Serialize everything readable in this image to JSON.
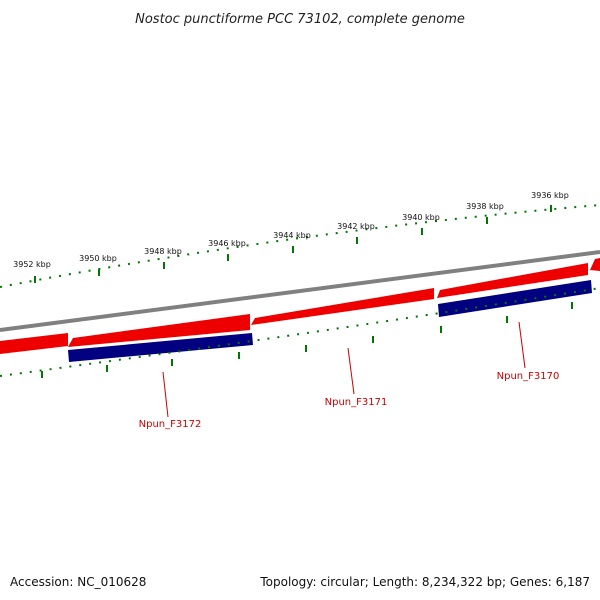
{
  "title": "Nostoc punctiforme PCC 73102, complete genome",
  "footer": {
    "accession": "Accession: NC_010628",
    "summary": "Topology: circular; Length: 8,234,322 bp; Genes: 6,187"
  },
  "ticks": {
    "labels": [
      "3952 kbp",
      "3950 kbp",
      "3948 kbp",
      "3946 kbp",
      "3944 kbp",
      "3942 kbp",
      "3940 kbp",
      "3938 kbp",
      "3936 kbp"
    ]
  },
  "genes": [
    {
      "name": "Npun_F3172"
    },
    {
      "name": "Npun_F3171"
    },
    {
      "name": "Npun_F3170"
    }
  ],
  "colors": {
    "backbone": "#808080",
    "feature": "#ee0000",
    "cds": "#000080",
    "tick": "#007700",
    "label": "#cc0000"
  }
}
